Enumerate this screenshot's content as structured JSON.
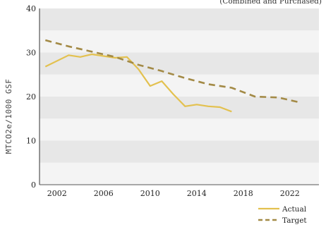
{
  "chart_data": {
    "type": "line",
    "subtitle": "(Combined and Purchased)",
    "ylabel": "MTCO2e/1000 GSF",
    "xlabel": "",
    "ylim": [
      0,
      40
    ],
    "xlim": [
      2000.5,
      2024.5
    ],
    "yticks": [
      "0",
      "10",
      "20",
      "30",
      "40"
    ],
    "xticks": [
      "2002",
      "2006",
      "2010",
      "2014",
      "2018",
      "2022"
    ],
    "xtick_values": [
      2002,
      2006,
      2010,
      2014,
      2018,
      2022
    ],
    "ytick_values": [
      0,
      10,
      20,
      30,
      40
    ],
    "grid": "horizontal bands",
    "legend_position": "bottom-right",
    "series": [
      {
        "name": "Actual",
        "style": "solid",
        "color": "#e3c14f",
        "x": [
          2001,
          2003,
          2004,
          2005,
          2006,
          2007,
          2008,
          2009,
          2010,
          2011,
          2012,
          2013,
          2014,
          2015,
          2016,
          2017
        ],
        "y": [
          26.8,
          29.4,
          29.0,
          29.6,
          29.2,
          28.8,
          29.0,
          26.2,
          22.4,
          23.5,
          20.5,
          17.8,
          18.2,
          17.8,
          17.6,
          16.6
        ]
      },
      {
        "name": "Target",
        "style": "dashed",
        "color": "#a38a46",
        "x": [
          2001,
          2003,
          2005,
          2007,
          2009,
          2011,
          2013,
          2015,
          2017,
          2019,
          2021,
          2023
        ],
        "y": [
          32.8,
          31.4,
          30.2,
          29.0,
          27.2,
          25.8,
          24.2,
          22.8,
          22.0,
          20.0,
          19.8,
          18.6
        ]
      }
    ]
  }
}
